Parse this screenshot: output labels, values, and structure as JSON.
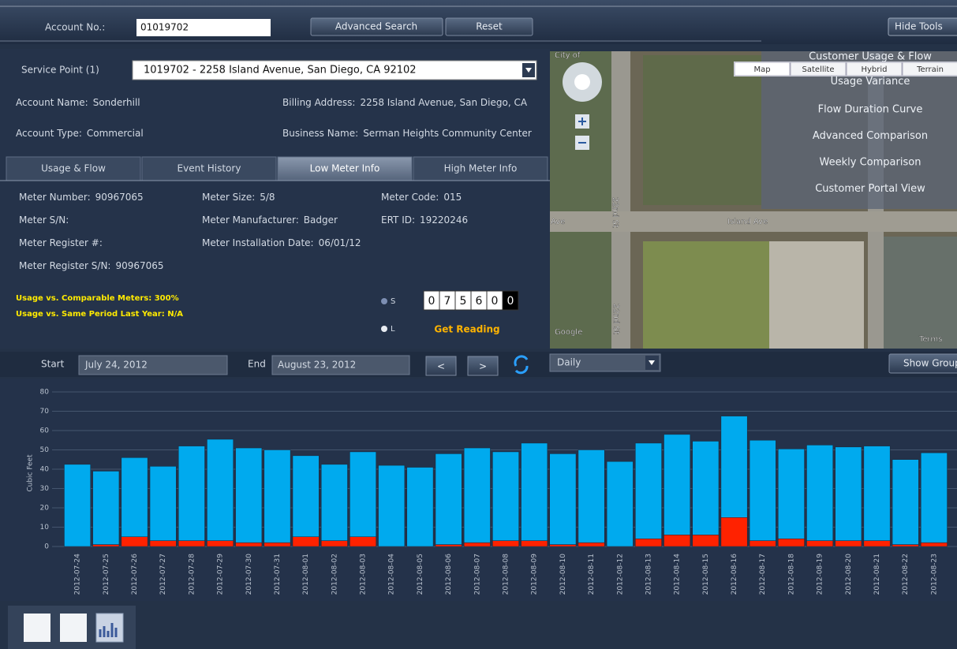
{
  "toolbar": {
    "account_label": "Account No.:",
    "account_number": "01019702",
    "buttons": [
      "Advanced Search",
      "Reset",
      "Hide Tools"
    ]
  },
  "service_point": {
    "label": "Service Point (1)",
    "value": "1019702 - 2258 Island Avenue, San Diego, CA 92102"
  },
  "account_info": [
    [
      {
        "label": "Account Name:",
        "value": "Sonderhill"
      },
      {
        "label": "Billing Address:",
        "value": "2258 Island Avenue, San Diego, CA"
      }
    ],
    [
      {
        "label": "Account Type:",
        "value": "Commercial"
      },
      {
        "label": "Business Name:",
        "value": "Serman Heights Community Center"
      }
    ]
  ],
  "tabs": [
    "Usage & Flow",
    "Event History",
    "Low Meter Info",
    "High Meter Info"
  ],
  "active_tab": 2,
  "meter_columns": [
    [
      {
        "label": "Meter Number:",
        "value": "90967065"
      },
      {
        "label": "Meter S/N:"
      },
      {
        "label": "Meter Register #:"
      },
      {
        "label": "Meter Register S/N:",
        "value": "90967065"
      }
    ],
    [
      {
        "label": "Meter Size:",
        "value": "5/8"
      },
      {
        "label": "Meter Manufacturer:",
        "value": "Badger"
      },
      {
        "label": "Meter Installation Date:",
        "value": "06/01/12"
      }
    ],
    [
      {
        "label": "Meter Code:",
        "value": "015"
      },
      {
        "label": "ERT ID:",
        "value": "19220246"
      }
    ]
  ],
  "usage_notes": [
    "Usage vs. Comparable Meters: 300%",
    "Usage vs. Same Period Last Year: N/A"
  ],
  "reading": {
    "options": [
      "S",
      "L"
    ],
    "digits": [
      "0",
      "7",
      "5",
      "6",
      "0",
      "0"
    ],
    "button": "Get Reading"
  },
  "map": {
    "types": [
      "Map",
      "Satellite",
      "Hybrid",
      "Terrain"
    ],
    "labels": [
      "City of",
      "22nd St",
      "22nd St",
      "Island Ave",
      "Ave",
      "Google",
      "Terms"
    ],
    "menu": [
      "Customer Usage & Flow",
      "Usage Variance",
      "Flow Duration Curve",
      "Advanced Comparison",
      "Weekly Comparison",
      "Customer Portal View"
    ]
  },
  "controls": {
    "start_label": "Start",
    "start": "July 24, 2012",
    "end_label": "End",
    "end": "August 23, 2012",
    "prev": "<",
    "next": ">",
    "interval": "Daily",
    "group_button": "Show Group"
  },
  "chart_data": {
    "type": "bar",
    "stacked": true,
    "ylabel": "Cubic Feet",
    "categories": [
      "2012-07-24",
      "2012-07-25",
      "2012-07-26",
      "2012-07-27",
      "2012-07-28",
      "2012-07-29",
      "2012-07-30",
      "2012-07-31",
      "2012-08-01",
      "2012-08-02",
      "2012-08-03",
      "2012-08-04",
      "2012-08-05",
      "2012-08-06",
      "2012-08-07",
      "2012-08-08",
      "2012-08-09",
      "2012-08-10",
      "2012-08-11",
      "2012-08-12",
      "2012-08-13",
      "2012-08-14",
      "2012-08-15",
      "2012-08-16",
      "2012-08-17",
      "2012-08-18",
      "2012-08-19",
      "2012-08-20",
      "2012-08-21",
      "2012-08-22",
      "2012-08-23"
    ],
    "series": [
      {
        "color": "#ff2200",
        "values": [
          0,
          1,
          5,
          3,
          3,
          3,
          2,
          2,
          5,
          3,
          5,
          0,
          0,
          1,
          2,
          3,
          3,
          1,
          2,
          0,
          4,
          6,
          6,
          15,
          3,
          4,
          3,
          3,
          3,
          1,
          2
        ]
      },
      {
        "color": "#00aaee",
        "values": [
          42.5,
          38,
          41,
          38.5,
          49,
          52.5,
          49,
          48,
          42,
          39.5,
          44,
          42,
          41,
          47,
          49,
          46,
          50.5,
          47,
          48,
          44,
          49.5,
          52,
          48.5,
          52.5,
          52,
          46.5,
          49.5,
          48.5,
          49,
          44,
          46.5
        ]
      }
    ],
    "ylim": [
      0,
      80
    ],
    "yticks": [
      0,
      10,
      20,
      30,
      40,
      50,
      60,
      70,
      80
    ],
    "grid": true
  }
}
